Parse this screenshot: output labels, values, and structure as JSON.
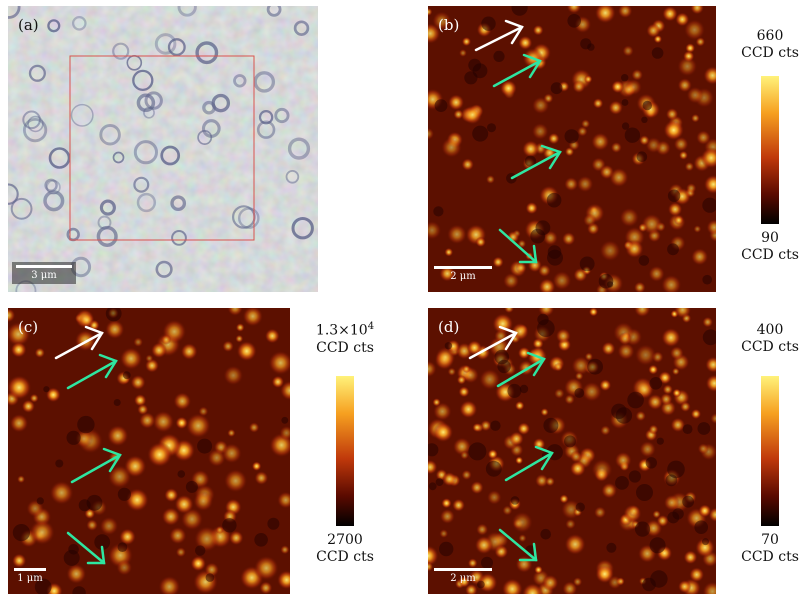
{
  "panels": {
    "a": {
      "label": "(a)",
      "scale": "3 μm"
    },
    "b": {
      "label": "(b)",
      "scale": "2 μm",
      "cbar_max": "660",
      "cbar_min": "90",
      "cbar_unit": "CCD cts"
    },
    "c": {
      "label": "(c)",
      "scale": "1 μm",
      "cbar_max_mant": "1.3×10",
      "cbar_max_exp": "4",
      "cbar_min": "2700",
      "cbar_unit": "CCD cts"
    },
    "d": {
      "label": "(d)",
      "scale": "2 μm",
      "cbar_max": "400",
      "cbar_min": "70",
      "cbar_unit": "CCD cts"
    }
  },
  "colors": {
    "arrow_white": "#ffffff",
    "arrow_green": "#2ee6a0",
    "roi_box": "#d9534f",
    "cmap_low": "#000000",
    "cmap_mid": "#c0390b",
    "cmap_high": "#fff27a"
  }
}
